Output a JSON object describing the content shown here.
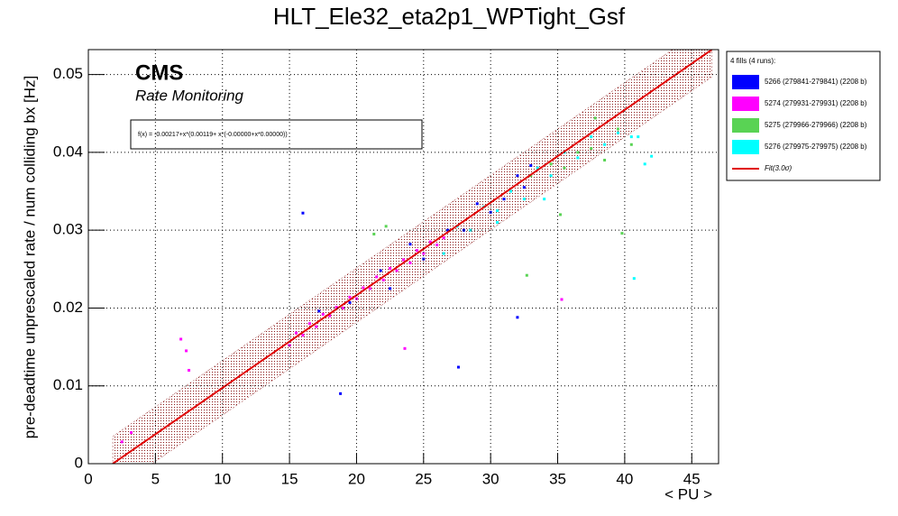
{
  "chart_data": {
    "type": "scatter",
    "title": "HLT_Ele32_eta2p1_WPTight_Gsf",
    "x_label": "< PU >",
    "y_label": "pre-deadtime unprescaled rate / num colliding bx [Hz]",
    "annotations": [
      "CMS",
      "Rate Monitoring",
      "f(x) = -0.00217+x*(0.00119+ x*(-0.00000+x*0.00000))"
    ],
    "legend_title": "4 fills (4 runs):",
    "xlim": [
      0,
      47
    ],
    "ylim": [
      0,
      0.0532
    ],
    "xticks": [
      0,
      5,
      10,
      15,
      20,
      25,
      30,
      35,
      40,
      45
    ],
    "yticks": [
      0,
      0.01,
      0.02,
      0.03,
      0.04,
      0.05
    ],
    "grid": true,
    "series": [
      {
        "name": "5266 (279841-279841) (2208 b)",
        "color": "#0000ff",
        "x": [
          17.2,
          19.5,
          21.8,
          22.5,
          24.0,
          25.0,
          26.8,
          28.0,
          29.0,
          30.0,
          31.0,
          32.0,
          33.0,
          32.5,
          16.0,
          18.8,
          27.6,
          32.0
        ],
        "values": [
          0.0196,
          0.0207,
          0.0248,
          0.0225,
          0.0282,
          0.0263,
          0.03,
          0.03,
          0.0334,
          0.0323,
          0.034,
          0.037,
          0.0383,
          0.0355,
          0.0322,
          0.009,
          0.0124,
          0.0188
        ]
      },
      {
        "name": "5274 (279931-279931) (2208 b)",
        "color": "#ff00ff",
        "x": [
          15.0,
          15.5,
          16.0,
          16.5,
          17.0,
          17.5,
          18.0,
          18.5,
          19.0,
          19.5,
          20.0,
          20.5,
          21.0,
          21.5,
          22.0,
          22.5,
          23.0,
          23.5,
          24.0,
          24.5,
          25.0,
          25.5,
          26.0,
          26.5,
          2.5,
          3.2,
          6.9,
          7.5,
          7.3,
          23.6,
          35.3
        ],
        "values": [
          0.0152,
          0.0168,
          0.0165,
          0.018,
          0.0176,
          0.0192,
          0.019,
          0.0201,
          0.02,
          0.0214,
          0.0212,
          0.0226,
          0.0225,
          0.024,
          0.0236,
          0.0251,
          0.0248,
          0.0262,
          0.0258,
          0.0274,
          0.027,
          0.0285,
          0.0281,
          0.029,
          0.0028,
          0.004,
          0.016,
          0.012,
          0.0145,
          0.0148,
          0.0211
        ]
      },
      {
        "name": "5275 (279966-279966) (2208 b)",
        "color": "#59d354",
        "x": [
          21.3,
          22.2,
          33.0,
          34.5,
          35.5,
          36.5,
          37.5,
          38.5,
          39.5,
          40.5,
          35.2,
          32.7,
          39.8,
          37.8
        ],
        "values": [
          0.0295,
          0.0305,
          0.037,
          0.0385,
          0.038,
          0.04,
          0.0405,
          0.039,
          0.043,
          0.041,
          0.032,
          0.0242,
          0.0296,
          0.0444
        ]
      },
      {
        "name": "5276 (279975-279975) (2208 b)",
        "color": "#00ffff",
        "x": [
          26.5,
          27.5,
          28.5,
          29.5,
          30.5,
          31.5,
          32.5,
          33.5,
          34.5,
          35.5,
          36.5,
          37.5,
          38.5,
          39.5,
          40.5,
          41.5,
          42.0,
          41.0,
          40.7,
          30.5,
          34.0
        ],
        "values": [
          0.027,
          0.0305,
          0.03,
          0.033,
          0.0325,
          0.035,
          0.034,
          0.038,
          0.037,
          0.04,
          0.0393,
          0.042,
          0.041,
          0.0425,
          0.042,
          0.0385,
          0.0395,
          0.042,
          0.0238,
          0.031,
          0.034
        ]
      }
    ],
    "fit": {
      "name": "Fit(3.0σ)",
      "color": "#e00000",
      "x": [
        1.82,
        46.5
      ],
      "values": [
        0,
        0.0532
      ],
      "band_upper": [
        0.0035,
        0.0567
      ],
      "band_lower": [
        -0.0035,
        0.0497
      ]
    }
  }
}
